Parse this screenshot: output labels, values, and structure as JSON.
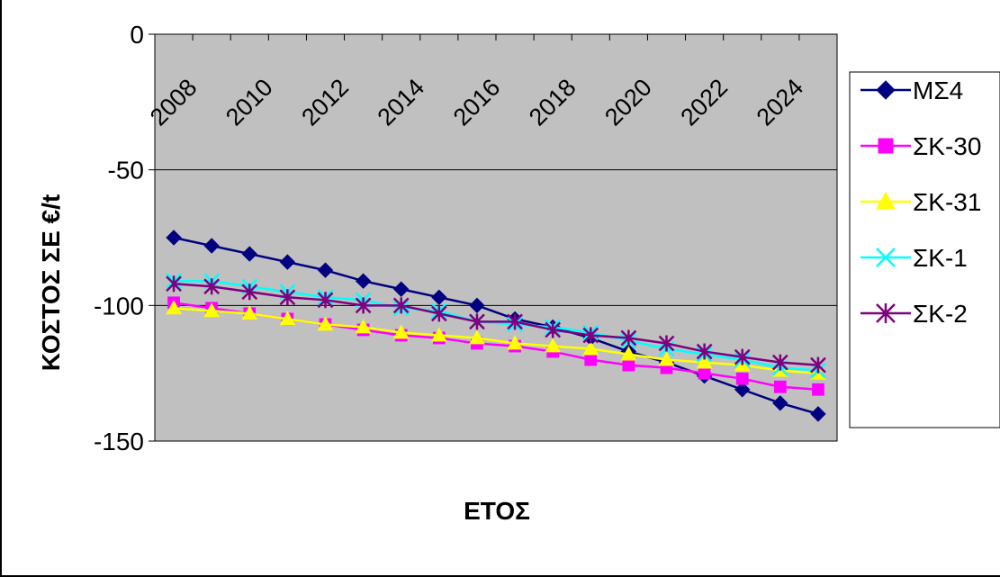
{
  "chart_data": {
    "type": "line",
    "title": "",
    "xlabel": "ΕΤΟΣ",
    "ylabel": "ΚΟΣΤΟΣ ΣΕ €/t",
    "ylim": [
      -150,
      0
    ],
    "yticks": [
      "0",
      "-50",
      "-100",
      "-150"
    ],
    "xticks": [
      "2008",
      "2010",
      "2012",
      "2014",
      "2016",
      "2018",
      "2020",
      "2022",
      "2024"
    ],
    "grid": true,
    "legend_position": "right",
    "plot_background": "#c0c0c0",
    "x": [
      2008,
      2009,
      2010,
      2011,
      2012,
      2013,
      2014,
      2015,
      2016,
      2017,
      2018,
      2019,
      2020,
      2021,
      2022,
      2023,
      2024,
      2025
    ],
    "series": [
      {
        "name": "ΜΣ4",
        "color": "#000080",
        "marker": "diamond",
        "values": [
          -75,
          -78,
          -81,
          -84,
          -87,
          -91,
          -94,
          -97,
          -100,
          -105,
          -108,
          -112,
          -117,
          -121,
          -126,
          -131,
          -136,
          -140
        ]
      },
      {
        "name": "ΣΚ-30",
        "color": "#ff00ff",
        "marker": "square",
        "values": [
          -99,
          -101,
          -103,
          -105,
          -107,
          -109,
          -111,
          -112,
          -114,
          -115,
          -117,
          -120,
          -122,
          -123,
          -125,
          -127,
          -130,
          -131
        ]
      },
      {
        "name": "ΣΚ-31",
        "color": "#ffff00",
        "marker": "triangle",
        "values": [
          -101,
          -102,
          -103,
          -105,
          -107,
          -108,
          -110,
          -111,
          -112,
          -114,
          -115,
          -116,
          -118,
          -120,
          -121,
          -122,
          -124,
          -125
        ]
      },
      {
        "name": "ΣΚ-1",
        "color": "#00ffff",
        "marker": "x",
        "values": [
          -91,
          -91,
          -93,
          -95,
          -97,
          -98,
          -101,
          -102,
          -106,
          -107,
          -108,
          -110,
          -113,
          -116,
          -118,
          -120,
          -123,
          -124
        ]
      },
      {
        "name": "ΣΚ-2",
        "color": "#800080",
        "marker": "star",
        "values": [
          -92,
          -93,
          -95,
          -97,
          -98,
          -100,
          -100,
          -103,
          -106,
          -106,
          -109,
          -111,
          -112,
          -114,
          -117,
          -119,
          -121,
          -122
        ]
      }
    ]
  }
}
